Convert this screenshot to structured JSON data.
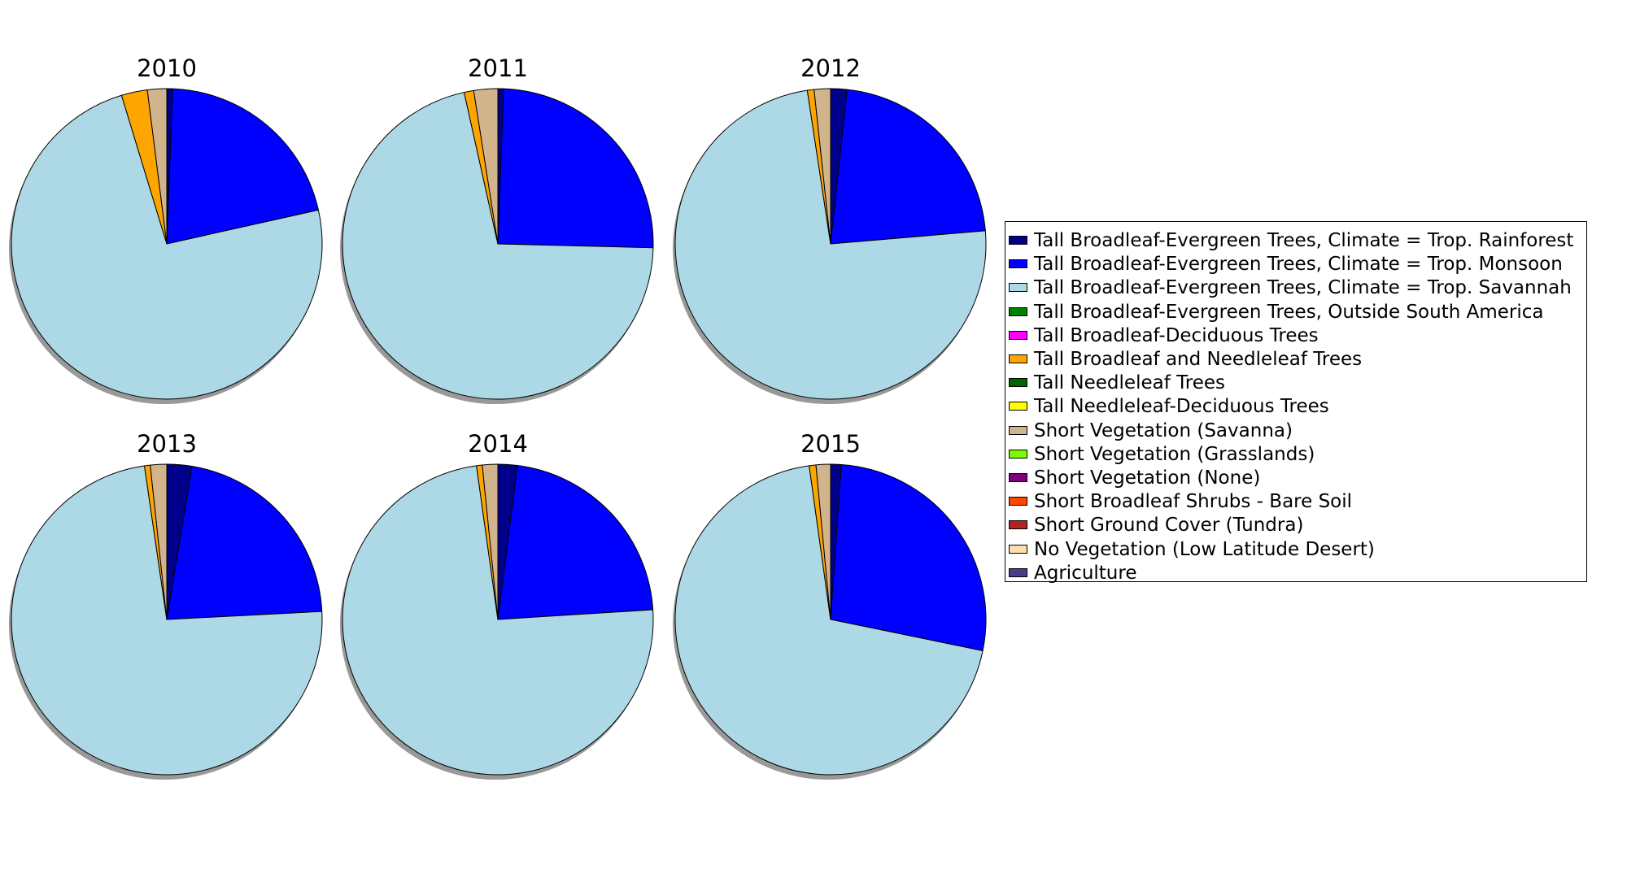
{
  "chart_data": {
    "type": "pie",
    "shadow": true,
    "start_angle_deg": 90,
    "direction": "clockwise",
    "legend_placement": "right",
    "categories": [
      "Tall Broadleaf-Evergreen Trees, Climate = Trop. Rainforest",
      "Tall Broadleaf-Evergreen Trees, Climate = Trop. Monsoon",
      "Tall Broadleaf-Evergreen Trees, Climate = Trop. Savannah",
      "Tall Broadleaf-Evergreen Trees, Outside South America",
      "Tall Broadleaf-Deciduous Trees",
      "Tall Broadleaf and Needleleaf Trees",
      "Tall Needleleaf Trees",
      "Tall Needleleaf-Deciduous Trees",
      "Short Vegetation (Savanna)",
      "Short Vegetation (Grasslands)",
      "Short Vegetation (None)",
      "Short Broadleaf Shrubs - Bare Soil",
      "Short Ground Cover (Tundra)",
      "No Vegetation (Low Latitude Desert)",
      "Agriculture"
    ],
    "colors": [
      "#00008b",
      "#0000ff",
      "#add8e6",
      "#008000",
      "#ff00ff",
      "#ffa500",
      "#006400",
      "#ffff00",
      "#d2b48c",
      "#7cfc00",
      "#800080",
      "#ff4500",
      "#b22222",
      "#ffdead",
      "#483d8b"
    ],
    "pies": [
      {
        "title": "2010",
        "values": [
          0.6,
          20.9,
          73.8,
          0,
          0,
          2.7,
          0,
          0,
          2.0,
          0,
          0,
          0,
          0,
          0,
          0
        ]
      },
      {
        "title": "2011",
        "values": [
          0.6,
          24.9,
          71.4,
          0,
          0,
          1.0,
          0,
          0,
          2.5,
          0,
          0,
          0,
          0,
          0,
          0
        ]
      },
      {
        "title": "2012",
        "values": [
          1.7,
          22.0,
          74.1,
          0,
          0,
          0.7,
          0,
          0,
          1.7,
          0,
          0,
          0,
          0,
          0,
          0
        ]
      },
      {
        "title": "2013",
        "values": [
          2.6,
          21.6,
          73.6,
          0,
          0,
          0.6,
          0,
          0,
          1.7,
          0,
          0,
          0,
          0,
          0,
          0
        ]
      },
      {
        "title": "2014",
        "values": [
          2.0,
          22.0,
          73.8,
          0,
          0,
          0.6,
          0,
          0,
          1.6,
          0,
          0,
          0,
          0,
          0,
          0
        ]
      },
      {
        "title": "2015",
        "values": [
          1.1,
          27.1,
          69.5,
          0,
          0,
          0.7,
          0,
          0,
          1.5,
          0,
          0,
          0,
          0,
          0,
          0
        ]
      }
    ]
  }
}
